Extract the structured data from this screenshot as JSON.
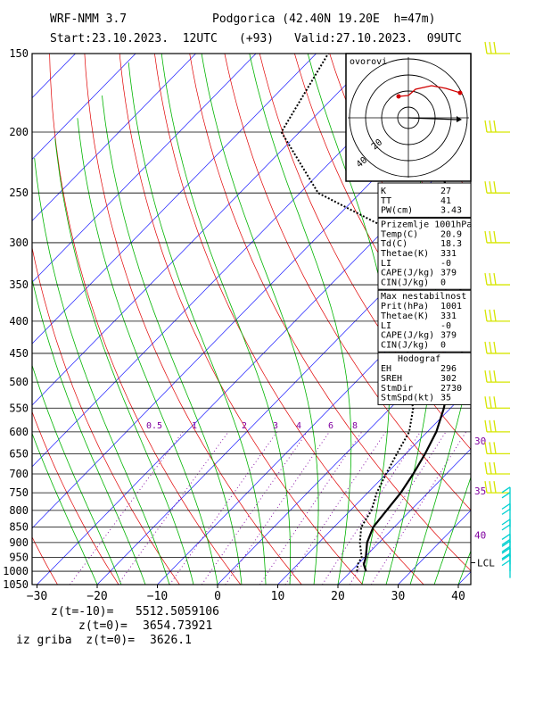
{
  "header": {
    "model": "WRF-NMM 3.7",
    "station": "Podgorica (42.40N 19.20E  h=47m)",
    "start": "Start:23.10.2023.  12UTC",
    "lead": "(+93)",
    "valid": "Valid:27.10.2023.  09UTC"
  },
  "footer": {
    "z_minus10_label": "z(t=-10)=",
    "z_minus10_value": "5512.5059106",
    "z0_label": "z(t=0)=",
    "z0_value": "3654.73921",
    "z0_grib_label": "iz griba  z(t=0)=",
    "z0_grib_value": "3626.1"
  },
  "colors": {
    "temperature": "#000000",
    "dewpoint": "#000000",
    "isotherm": "#1a1aff",
    "dry_adiabat": "#e00000",
    "moist_adiabat": "#00b400",
    "mixing_ratio": "#8000a0",
    "wind_barb": "#d6e600",
    "wind_barb_low": "#00d0d0",
    "hodograph_trace": "#d00000"
  },
  "chart_data": {
    "type": "line",
    "title": "WRF-NMM 3.7",
    "xlabel": "",
    "ylabel": "",
    "pressure_ticks": [
      150,
      200,
      250,
      300,
      350,
      400,
      450,
      500,
      550,
      600,
      650,
      700,
      750,
      800,
      850,
      900,
      950,
      1000,
      1050
    ],
    "temperature_ticks": [
      -30,
      -20,
      -10,
      0,
      10,
      20,
      30,
      40
    ],
    "xlim": [
      -30,
      42
    ],
    "ylim_hpa": [
      1050,
      150
    ],
    "skew": "skew-T log-p",
    "mixing_ratio_labels": [
      "0.5",
      "1",
      "2",
      "3",
      "4",
      "6",
      "8"
    ],
    "right_axis_labels": [
      {
        "p": 620,
        "label": "30"
      },
      {
        "p": 745,
        "label": "35"
      },
      {
        "p": 875,
        "label": "40"
      }
    ],
    "lcl_label": "LCL",
    "lcl_p": 985,
    "series": [
      {
        "name": "Temperature",
        "points": [
          [
            1000,
            22.5
          ],
          [
            975,
            21.0
          ],
          [
            950,
            20.2
          ],
          [
            900,
            18.0
          ],
          [
            850,
            16.5
          ],
          [
            800,
            16.0
          ],
          [
            750,
            15.5
          ],
          [
            700,
            14.5
          ],
          [
            650,
            13.2
          ],
          [
            600,
            11.5
          ],
          [
            550,
            8.9
          ],
          [
            500,
            5.5
          ],
          [
            450,
            3.0
          ],
          [
            400,
            -2.0
          ],
          [
            350,
            -8.5
          ],
          [
            300,
            -15.5
          ],
          [
            250,
            -25.5
          ],
          [
            200,
            -38.0
          ],
          [
            150,
            -42.5
          ]
        ]
      },
      {
        "name": "Dewpoint",
        "points": [
          [
            1000,
            21.0
          ],
          [
            975,
            20.0
          ],
          [
            950,
            19.5
          ],
          [
            900,
            16.8
          ],
          [
            850,
            14.5
          ],
          [
            800,
            13.5
          ],
          [
            750,
            11.5
          ],
          [
            700,
            10.0
          ],
          [
            650,
            8.5
          ],
          [
            600,
            7.0
          ],
          [
            550,
            3.8
          ],
          [
            500,
            -1.5
          ],
          [
            450,
            -6.0
          ],
          [
            400,
            -12.5
          ],
          [
            350,
            -19.5
          ],
          [
            300,
            -27.0
          ],
          [
            280,
            -32.0
          ],
          [
            250,
            -47.0
          ],
          [
            200,
            -63.0
          ],
          [
            150,
            -68.0
          ]
        ]
      }
    ]
  },
  "hodograph": {
    "title": "ovorovi",
    "ring_labels": [
      "20",
      "40"
    ]
  },
  "indices": {
    "basic": [
      {
        "label": "K",
        "value": "27"
      },
      {
        "label": "TT",
        "value": "41"
      },
      {
        "label": "PW(cm)",
        "value": "3.43"
      }
    ],
    "surface_title": "Prizemlje 1001hPa",
    "surface": [
      {
        "label": "Temp(C)",
        "value": "20.9"
      },
      {
        "label": "Td(C)",
        "value": "18.3"
      },
      {
        "label": "Thetae(K)",
        "value": "331"
      },
      {
        "label": "LI",
        "value": "-0"
      },
      {
        "label": "CAPE(J/kg)",
        "value": "379"
      },
      {
        "label": "CIN(J/kg)",
        "value": "0"
      }
    ],
    "max_title": "Max nestabilnost",
    "max": [
      {
        "label": "Prit(hPa)",
        "value": "1001"
      },
      {
        "label": "Thetae(K)",
        "value": "331"
      },
      {
        "label": "LI",
        "value": "-0"
      },
      {
        "label": "CAPE(J/kg)",
        "value": "379"
      },
      {
        "label": "CIN(J/kg)",
        "value": "0"
      }
    ],
    "hodo_title": "Hodograf",
    "hodo": [
      {
        "label": "EH",
        "value": "296"
      },
      {
        "label": "SREH",
        "value": "302"
      },
      {
        "label": "StmDir",
        "value": "2730"
      },
      {
        "label": "StmSpd(kt)",
        "value": "35"
      }
    ]
  }
}
